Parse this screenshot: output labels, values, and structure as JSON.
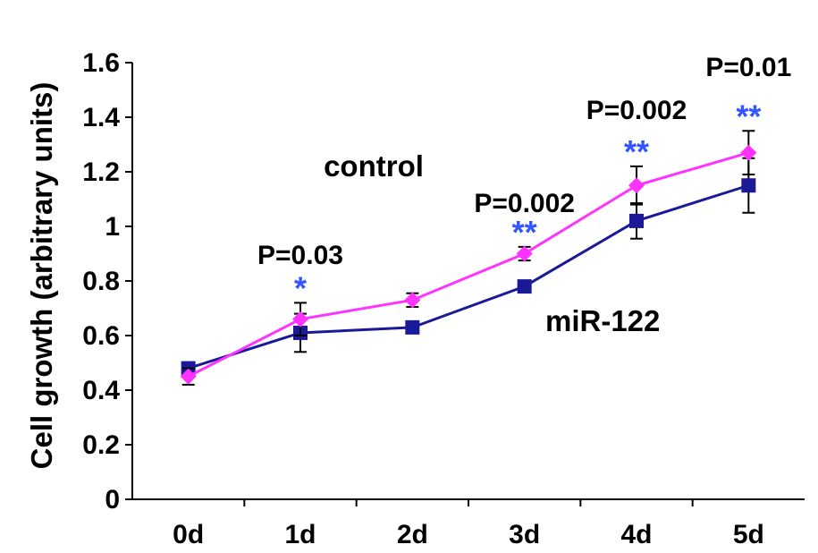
{
  "chart_data": {
    "type": "line",
    "ylabel": "Cell growth (arbitrary units)",
    "xlabel": "",
    "categories": [
      "0d",
      "1d",
      "2d",
      "3d",
      "4d",
      "5d"
    ],
    "ylim": [
      0,
      1.6
    ],
    "yticks": [
      0,
      0.2,
      0.4,
      0.6,
      0.8,
      1,
      1.2,
      1.4,
      1.6
    ],
    "grid": false,
    "series": [
      {
        "name": "control",
        "color": "#ff33ff",
        "marker": "diamond",
        "values": [
          0.45,
          0.66,
          0.73,
          0.9,
          1.15,
          1.27
        ],
        "errors": [
          0.03,
          0.06,
          0.025,
          0.025,
          0.07,
          0.08
        ]
      },
      {
        "name": "miR-122",
        "color": "#1a1a99",
        "marker": "square",
        "values": [
          0.48,
          0.61,
          0.63,
          0.78,
          1.02,
          1.15
        ],
        "errors": [
          0.02,
          0.07,
          0.02,
          0.02,
          0.065,
          0.1
        ]
      }
    ],
    "annotations": [
      {
        "category": "1d",
        "p_value": "P=0.03",
        "stars": "*"
      },
      {
        "category": "3d",
        "p_value": "P=0.002",
        "stars": "**"
      },
      {
        "category": "4d",
        "p_value": "P=0.002",
        "stars": "**"
      },
      {
        "category": "5d",
        "p_value": "P=0.01",
        "stars": "**"
      }
    ],
    "star_color": "#3355ff"
  }
}
